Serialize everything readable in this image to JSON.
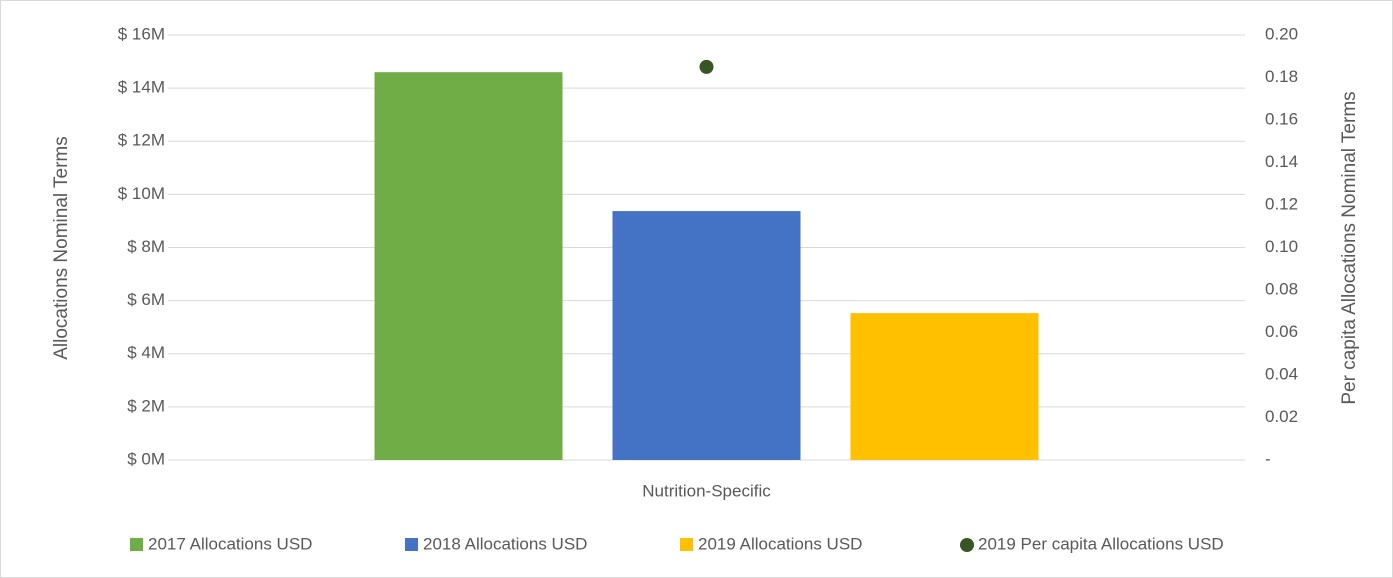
{
  "chart_data": {
    "type": "bar",
    "categories": [
      "Nutrition-Specific"
    ],
    "series": [
      {
        "name": "2017 Allocations USD",
        "color": "#70ad47",
        "values": [
          14600000
        ]
      },
      {
        "name": "2018 Allocations USD",
        "color": "#4472c4",
        "values": [
          9370000
        ]
      },
      {
        "name": "2019 Allocations USD",
        "color": "#ffc000",
        "values": [
          5530000
        ]
      },
      {
        "name": "2019 Per capita Allocations USD",
        "color": "#375623",
        "values": [
          0.185
        ],
        "axis": "y2",
        "type": "scatter"
      }
    ],
    "ylabel": "Allocations Nominal Terms",
    "y2label": "Per capita Allocations Nominal Terms",
    "ylim": [
      0,
      16000000
    ],
    "yticks": [
      {
        "value": 0,
        "label": "$ 0M"
      },
      {
        "value": 2000000,
        "label": "$ 2M"
      },
      {
        "value": 4000000,
        "label": "$ 4M"
      },
      {
        "value": 6000000,
        "label": "$ 6M"
      },
      {
        "value": 8000000,
        "label": "$ 8M"
      },
      {
        "value": 10000000,
        "label": "$ 10M"
      },
      {
        "value": 12000000,
        "label": "$ 12M"
      },
      {
        "value": 14000000,
        "label": "$ 14M"
      },
      {
        "value": 16000000,
        "label": "$ 16M"
      }
    ],
    "y2lim": [
      0,
      0.2
    ],
    "y2ticks": [
      {
        "value": 0,
        "label": "-"
      },
      0.02,
      0.04,
      0.06,
      0.08,
      {
        "value": 0.1,
        "label": "0.10"
      },
      0.12,
      0.14,
      0.16,
      0.18,
      {
        "value": 0.2,
        "label": "0.20"
      }
    ],
    "grid": true,
    "legend": "bottom"
  }
}
